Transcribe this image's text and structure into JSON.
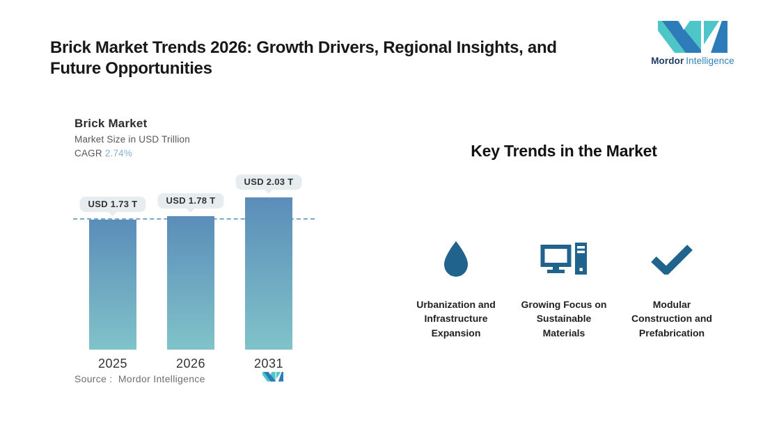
{
  "header": {
    "title": "Brick Market Trends 2026: Growth Drivers, Regional Insights, and Future Opportunities",
    "logo": {
      "word1": "Mordor",
      "word2": "Intelligence"
    }
  },
  "chart_data": {
    "type": "bar",
    "title": "Brick Market",
    "subtitle": "Market Size in USD Trillion",
    "cagr_label": "CAGR",
    "cagr_value": "2.74%",
    "categories": [
      "2025",
      "2026",
      "2031"
    ],
    "values": [
      1.73,
      1.78,
      2.03
    ],
    "bar_labels": [
      "USD 1.73 T",
      "USD 1.78 T",
      "USD 2.03 T"
    ],
    "unit": "USD Trillion",
    "baseline_value": 1.73,
    "source": "Source :  Mordor Intelligence",
    "legend": "none",
    "grid": "off",
    "colors": {
      "bar_top": "#5b8db9",
      "bar_bottom": "#80c3c9",
      "dashed_line": "#7ba9c9",
      "pill_background": "#e7edee",
      "cagr_value": "#86b0d2"
    }
  },
  "trends": {
    "heading": "Key Trends in the Market",
    "items": [
      {
        "icon": "water-drop-icon",
        "label": "Urbanization and\nInfrastructure\nExpansion"
      },
      {
        "icon": "computer-icon",
        "label": "Growing Focus on\nSustainable\nMaterials"
      },
      {
        "icon": "checkmark-icon",
        "label": "Modular\nConstruction and\nPrefabrication"
      }
    ]
  },
  "brand_colors": {
    "teal": "#4ec5c6",
    "blue": "#2d7cb9",
    "icon_blue": "#20638c"
  }
}
